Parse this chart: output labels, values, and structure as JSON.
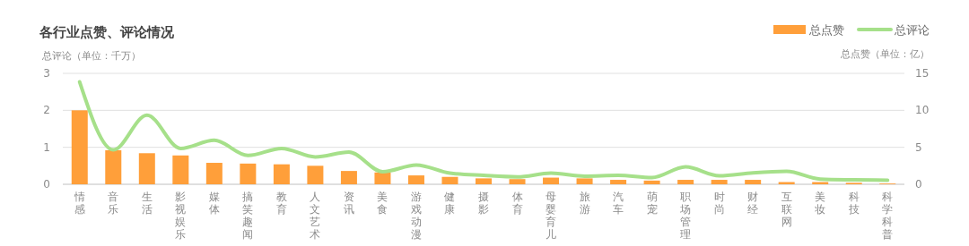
{
  "chart_data": {
    "type": "bar",
    "title": "各行业点赞、评论情况",
    "ylabel": "总评论（单位：千万）",
    "y2label": "总点赞（单位：亿）",
    "categories": [
      "情感",
      "音乐",
      "生活",
      "影视娱乐",
      "媒体",
      "搞笑趣闻",
      "教育",
      "人文艺术",
      "资讯",
      "美食",
      "游戏动漫",
      "健康",
      "摄影",
      "体育",
      "母婴育儿",
      "旅游",
      "汽车",
      "萌宠",
      "职场管理",
      "时尚",
      "财经",
      "互联网",
      "美妆",
      "科技",
      "科学科普"
    ],
    "series": [
      {
        "name": "总点赞",
        "axis": "y2",
        "color": "#ff9f3a",
        "values": [
          10.0,
          4.6,
          4.2,
          3.9,
          2.9,
          2.8,
          2.7,
          2.5,
          1.8,
          1.6,
          1.2,
          1.0,
          0.8,
          0.7,
          0.9,
          0.8,
          0.6,
          0.5,
          0.6,
          0.6,
          0.6,
          0.3,
          0.3,
          0.2,
          0.1
        ]
      },
      {
        "name": "总评论",
        "type": "line",
        "color": "#a6e08a",
        "values": [
          2.77,
          0.93,
          1.87,
          0.97,
          1.19,
          0.78,
          0.97,
          0.74,
          0.87,
          0.34,
          0.52,
          0.3,
          0.24,
          0.2,
          0.3,
          0.22,
          0.24,
          0.18,
          0.47,
          0.23,
          0.31,
          0.35,
          0.14,
          0.12,
          0.11
        ]
      }
    ],
    "ylim": [
      0,
      3
    ],
    "yticks": [
      0,
      1,
      2,
      3
    ],
    "y2lim": [
      0,
      15
    ],
    "y2ticks": [
      0,
      5,
      10,
      15
    ],
    "grid": "y",
    "legend": "top right",
    "marker": "none"
  }
}
